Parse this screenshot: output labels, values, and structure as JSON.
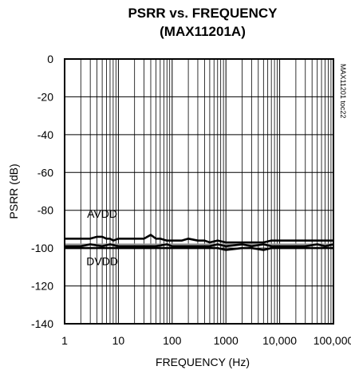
{
  "chart_data": {
    "type": "line",
    "title": "PSRR vs. FREQUENCY",
    "subtitle": "(MAX11201A)",
    "xlabel": "FREQUENCY (Hz)",
    "ylabel": "PSRR (dB)",
    "x_scale": "log",
    "xlim": [
      1,
      100000
    ],
    "ylim": [
      -140,
      0
    ],
    "grid": true,
    "x_ticks": [
      {
        "value": 1,
        "label": "1"
      },
      {
        "value": 10,
        "label": "10"
      },
      {
        "value": 100,
        "label": "100"
      },
      {
        "value": 1000,
        "label": "1000"
      },
      {
        "value": 10000,
        "label": "10,000"
      },
      {
        "value": 100000,
        "label": "100,000"
      }
    ],
    "y_ticks": [
      {
        "value": 0,
        "label": "0"
      },
      {
        "value": -20,
        "label": "-20"
      },
      {
        "value": -40,
        "label": "-40"
      },
      {
        "value": -60,
        "label": "-60"
      },
      {
        "value": -80,
        "label": "-80"
      },
      {
        "value": -100,
        "label": "-100"
      },
      {
        "value": -120,
        "label": "-120"
      },
      {
        "value": -140,
        "label": "-140"
      }
    ],
    "series": [
      {
        "name": "AVDD",
        "color": "#000000",
        "label_at": {
          "x": 5,
          "y": -84
        },
        "x": [
          1,
          2,
          3,
          4,
          5,
          6,
          7,
          8,
          10,
          15,
          20,
          30,
          40,
          50,
          60,
          80,
          100,
          150,
          200,
          300,
          400,
          500,
          700,
          1000,
          2000,
          3000,
          5000,
          7000,
          10000,
          20000,
          50000,
          70000,
          100000
        ],
        "y": [
          -95,
          -95,
          -95,
          -94,
          -94,
          -95,
          -95,
          -96,
          -95,
          -95,
          -95,
          -95,
          -93,
          -95,
          -95,
          -96,
          -96,
          -96,
          -95,
          -96,
          -96,
          -97,
          -96,
          -97,
          -97,
          -97,
          -97,
          -96,
          -96,
          -96,
          -96,
          -96,
          -96
        ]
      },
      {
        "name": "DVDD",
        "color": "#000000",
        "label_at": {
          "x": 5,
          "y": -109
        },
        "x": [
          1,
          2,
          3,
          5,
          7,
          10,
          20,
          30,
          50,
          80,
          100,
          200,
          300,
          500,
          700,
          1000,
          2000,
          3000,
          5000,
          7000,
          10000,
          20000,
          30000,
          50000,
          70000,
          100000
        ],
        "y": [
          -99,
          -99,
          -98,
          -99,
          -98,
          -99,
          -99,
          -99,
          -99,
          -98,
          -99,
          -99,
          -99,
          -99,
          -98,
          -99,
          -98,
          -99,
          -98,
          -99,
          -99,
          -99,
          -99,
          -98,
          -99,
          -98
        ]
      },
      {
        "name": "",
        "color": "#000000",
        "x": [
          1,
          2,
          3,
          5,
          7,
          10,
          20,
          30,
          50,
          80,
          100,
          200,
          300,
          500,
          700,
          1000,
          2000,
          3000,
          5000,
          7000,
          10000,
          20000,
          30000,
          50000,
          70000,
          100000
        ],
        "y": [
          -100,
          -100,
          -100,
          -100,
          -100,
          -100,
          -100,
          -100,
          -100,
          -100,
          -100,
          -100,
          -100,
          -100,
          -100,
          -101,
          -100,
          -100,
          -101,
          -100,
          -100,
          -100,
          -100,
          -100,
          -100,
          -100
        ]
      }
    ],
    "reference_line": {
      "y": -98,
      "color": "#999999"
    },
    "annotation": "MAX11201 toc22"
  }
}
